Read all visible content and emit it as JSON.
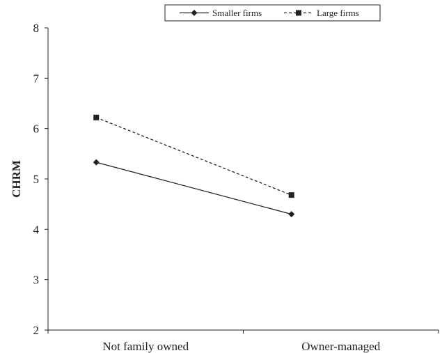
{
  "chart_data": {
    "type": "line",
    "categories": [
      "Not family owned",
      "Owner-managed"
    ],
    "series": [
      {
        "name": "Smaller firms",
        "values": [
          5.33,
          4.3
        ],
        "line_style": "solid",
        "marker": "diamond",
        "color": "#222222"
      },
      {
        "name": "Large firms",
        "values": [
          6.22,
          4.68
        ],
        "line_style": "dashed",
        "marker": "square",
        "color": "#222222"
      }
    ],
    "ylabel": "CHRM",
    "xlabel": "",
    "ylim": [
      2,
      8
    ],
    "yticks": [
      "2",
      "3",
      "4",
      "5",
      "6",
      "7",
      "8"
    ],
    "grid": false,
    "legend_position": "top"
  }
}
